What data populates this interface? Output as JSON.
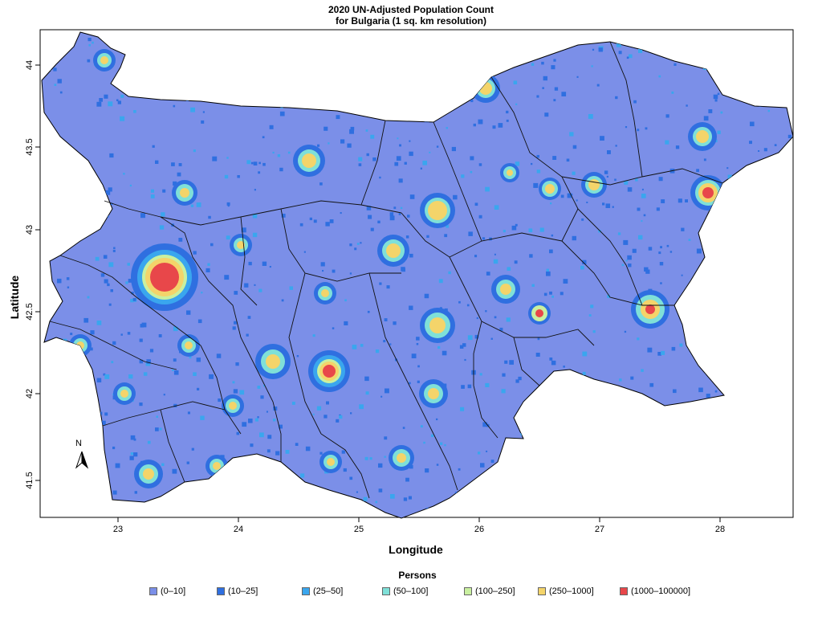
{
  "title_line1": "2020 UN-Adjusted Population Count",
  "title_line2": "for Bulgaria (1 sq. km resolution)",
  "x_axis": {
    "label": "Longitude",
    "ticks": [
      "23",
      "24",
      "25",
      "26",
      "27",
      "28"
    ],
    "range": [
      22.33,
      28.63
    ]
  },
  "y_axis": {
    "label": "Latitude",
    "ticks": [
      "41.5",
      "42",
      "42.5",
      "43",
      "43.5",
      "44"
    ],
    "range": [
      41.24,
      44.24
    ]
  },
  "north_arrow": {
    "label": "N",
    "icon": "north-arrow-icon"
  },
  "legend": {
    "title": "Persons",
    "items": [
      {
        "label": "(0–10]",
        "color": "#7b8fe8"
      },
      {
        "label": "(10–25]",
        "color": "#2f6fe0"
      },
      {
        "label": "(25–50]",
        "color": "#3aa6ee"
      },
      {
        "label": "(50–100]",
        "color": "#7fe0d8"
      },
      {
        "label": "(100–250]",
        "color": "#c9f0a0"
      },
      {
        "label": "(250–1000]",
        "color": "#f4d46a"
      },
      {
        "label": "(1000–100000]",
        "color": "#e8474a"
      }
    ]
  }
}
